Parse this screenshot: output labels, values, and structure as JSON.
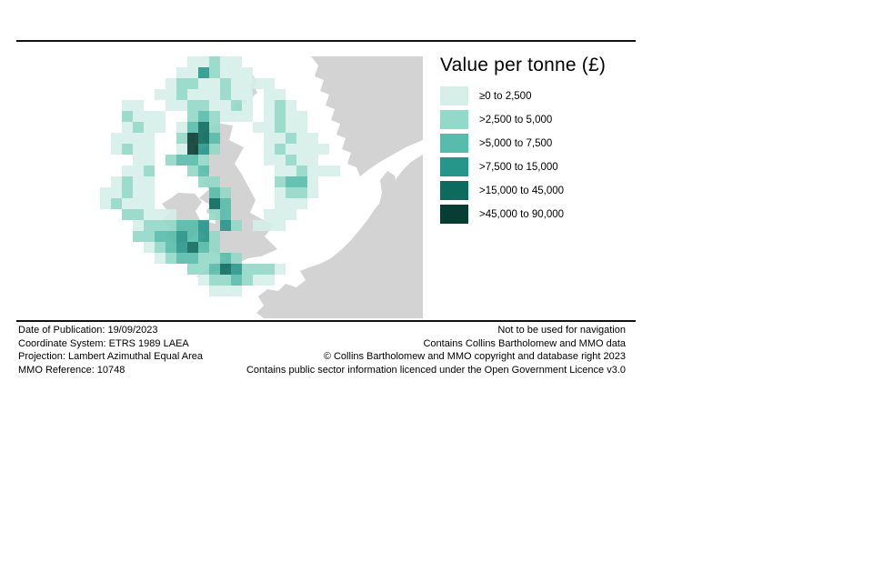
{
  "legend": {
    "title": "Value per tonne (£)",
    "items": [
      {
        "label": "≥0 to 2,500",
        "color": "#d6efe9"
      },
      {
        "label": ">2,500 to 5,000",
        "color": "#93d8c8"
      },
      {
        "label": ">5,000 to 7,500",
        "color": "#57bcab"
      },
      {
        "label": ">7,500 to 15,000",
        "color": "#27968a"
      },
      {
        "label": ">15,000 to 45,000",
        "color": "#0c6b5e"
      },
      {
        "label": ">45,000 to 90,000",
        "color": "#083d33"
      }
    ]
  },
  "footer": {
    "left": [
      "Date of Publication: 19/09/2023",
      "Coordinate System: ETRS 1989 LAEA",
      "Projection: Lambert Azimuthal Equal Area",
      "MMO Reference: 10748"
    ],
    "right": [
      "Not to be used for navigation",
      "Contains Collins Bartholomew and MMO data",
      "© Collins Bartholomew and MMO copyright and database right 2023",
      "Contains public sector information licenced under the Open Government Licence v3.0"
    ]
  },
  "map": {
    "land_color": "#d3d3d3",
    "sea_color": "#ffffff",
    "cell_size": 12,
    "cell_opacity": 0.9,
    "grid": [
      "00000000112110000000000000000",
      "00000001142111000000000000000",
      "00000012211211110000000000000",
      "00000112111211011000000000000",
      "00110011221121012100000000000",
      "00211100232111012110000000000",
      "00121101352000112110000000000",
      "01111002653000011211000000000",
      "01211001642000012111100000000",
      "00011023320000011211000000000",
      "00112000230000001121110000000",
      "01211000022000002331000000000",
      "11211000003200001221000000000",
      "12111000005300001110000000000",
      "00221110002300011100000000000",
      "00012223340420111000000000000",
      "00022334342000000000000000000",
      "00001234532000000000000000000",
      "00000123322320000000000000000",
      "00000000223542221000000000000",
      "00000000012232110000000000000",
      "00000000001110000000000000000",
      "00000000000000000000000000000",
      "00000000000000000000000000000"
    ]
  }
}
